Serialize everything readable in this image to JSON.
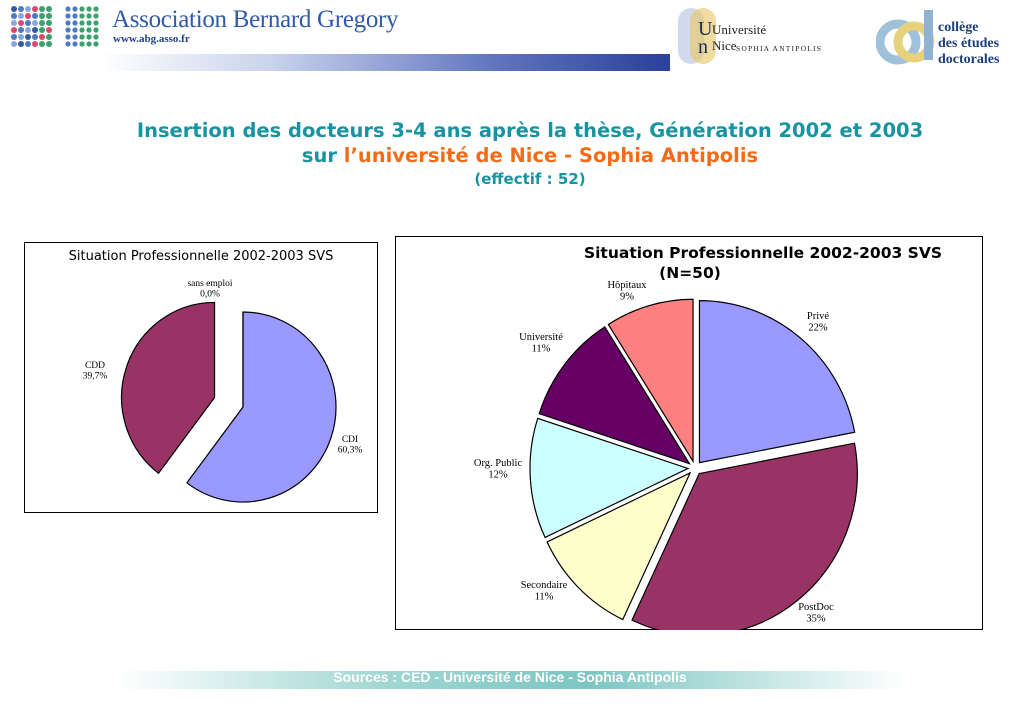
{
  "header": {
    "abg_name": "Association Bernard Gregory",
    "abg_url": "www.abg.asso.fr",
    "unice_line1": "Université",
    "unice_line2": "Nice",
    "unice_sub": "SOPHIA ANTIPOLIS",
    "ced_lines": [
      "collège",
      "des études",
      "doctorales"
    ],
    "colors": {
      "abg_blue": "#2f5aa8",
      "ced_navy": "#1c3e7a"
    }
  },
  "title": {
    "line1": "Insertion des docteurs 3-4 ans après la thèse, Génération 2002 et 2003",
    "line2_a": "sur ",
    "line2_b": "l’université de Nice - Sophia Antipolis",
    "line3": "(effectif : 52)",
    "colors": {
      "teal": "#1793a2",
      "orange": "#f26b18"
    }
  },
  "chart_data": [
    {
      "type": "pie",
      "title": "Situation Professionnelle 2002-2003 SVS",
      "categories": [
        "CDI",
        "CDD",
        "sans emploi"
      ],
      "values": [
        60.3,
        39.7,
        0.0
      ],
      "value_labels": [
        "60,3%",
        "39,7%",
        "0,0%"
      ],
      "colors": [
        "#9999ff",
        "#993366",
        "#ffffcc"
      ]
    },
    {
      "type": "pie",
      "title": "Situation Professionnelle 2002-2003 SVS (N=50)",
      "categories": [
        "Privé",
        "PostDoc",
        "Secondaire",
        "Org. Public",
        "Université",
        "Hôpitaux"
      ],
      "values": [
        22,
        35,
        11,
        12,
        11,
        9
      ],
      "value_labels": [
        "22%",
        "35%",
        "11%",
        "12%",
        "11%",
        "9%"
      ],
      "colors": [
        "#9999ff",
        "#993366",
        "#ffffcc",
        "#ccffff",
        "#660066",
        "#ff8080"
      ]
    }
  ],
  "chart_titles": {
    "chart1": "Situation Professionnelle 2002-2003 SVS",
    "chart2_l1": "Situation Professionnelle 2002-2003 SVS",
    "chart2_l2": "(N=50)"
  },
  "footer": {
    "text": "Sources :  CED - Université de Nice - Sophia Antipolis"
  }
}
